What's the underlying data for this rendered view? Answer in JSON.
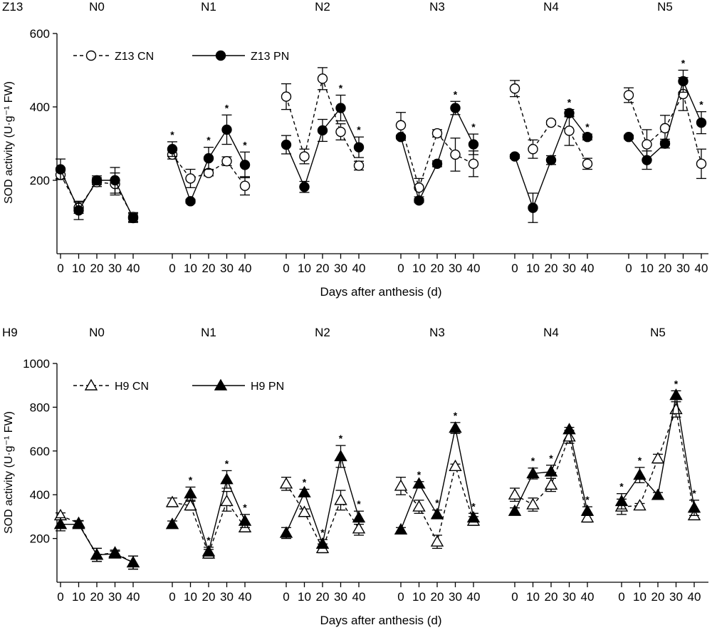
{
  "chart_data": [
    {
      "type": "line",
      "panel_label": "Z13",
      "ylabel": "SOD activity (U·g⁻¹ FW)",
      "xlabel": "Days after anthesis (d)",
      "ylim": [
        0,
        600
      ],
      "yticks": [
        200,
        400,
        600
      ],
      "groups": [
        "N0",
        "N1",
        "N2",
        "N3",
        "N4",
        "N5"
      ],
      "x": [
        0,
        10,
        20,
        30,
        40
      ],
      "marker": "circle",
      "series": [
        {
          "name": "Z13 CN",
          "style": "dashed-open",
          "values": [
            [
              215,
              125,
              195,
              190,
              100
            ],
            [
              270,
              205,
              220,
              252,
              185
            ],
            [
              428,
              265,
              477,
              332,
              240
            ],
            [
              350,
              180,
              328,
              270,
              245
            ],
            [
              450,
              285,
              357,
              335,
              245
            ],
            [
              432,
              298,
              342,
              435,
              245
            ]
          ],
          "errors": [
            [
              10,
              15,
              12,
              30,
              12
            ],
            [
              12,
              25,
              8,
              12,
              25
            ],
            [
              35,
              20,
              30,
              22,
              12
            ],
            [
              35,
              25,
              10,
              45,
              35
            ],
            [
              22,
              25,
              5,
              40,
              15
            ],
            [
              20,
              40,
              35,
              45,
              40
            ]
          ]
        },
        {
          "name": "Z13 PN",
          "style": "solid-filled",
          "values": [
            [
              230,
              118,
              200,
              200,
              97
            ],
            [
              285,
              143,
              260,
              338,
              242
            ],
            [
              297,
              182,
              336,
              397,
              290
            ],
            [
              318,
              145,
              245,
              397,
              298
            ],
            [
              265,
              125,
              255,
              383,
              318
            ],
            [
              318,
              255,
              300,
              470,
              357
            ]
          ],
          "errors": [
            [
              28,
              25,
              12,
              35,
              12
            ],
            [
              20,
              5,
              30,
              40,
              35
            ],
            [
              25,
              15,
              30,
              35,
              28
            ],
            [
              5,
              5,
              8,
              18,
              28
            ],
            [
              5,
              40,
              12,
              10,
              8
            ],
            [
              5,
              25,
              12,
              30,
              30
            ]
          ]
        }
      ],
      "significance": [
        [
          0,
          0,
          0,
          0,
          0
        ],
        [
          1,
          0,
          1,
          1,
          1
        ],
        [
          0,
          0,
          0,
          1,
          1
        ],
        [
          0,
          0,
          0,
          1,
          1
        ],
        [
          0,
          0,
          0,
          1,
          1
        ],
        [
          0,
          0,
          0,
          1,
          1
        ]
      ],
      "significance_mark": "*"
    },
    {
      "type": "line",
      "panel_label": "H9",
      "ylabel": "SOD activity (U·g⁻¹ FW)",
      "xlabel": "Days after anthesis (d)",
      "ylim": [
        0,
        1000
      ],
      "yticks": [
        200,
        400,
        600,
        800,
        1000
      ],
      "groups": [
        "N0",
        "N1",
        "N2",
        "N3",
        "N4",
        "N5"
      ],
      "x": [
        0,
        10,
        20,
        30,
        40
      ],
      "marker": "triangle",
      "series": [
        {
          "name": "H9 CN",
          "style": "dashed-open",
          "values": [
            [
              305,
              270,
              125,
              135,
              90
            ],
            [
              365,
              350,
              130,
              370,
              250
            ],
            [
              450,
              320,
              155,
              375,
              245
            ],
            [
              440,
              345,
              185,
              530,
              280
            ],
            [
              400,
              355,
              445,
              665,
              295
            ],
            [
              345,
              350,
              565,
              790,
              305
            ]
          ],
          "errors": [
            [
              12,
              12,
              30,
              12,
              30
            ],
            [
              20,
              20,
              20,
              45,
              20
            ],
            [
              30,
              15,
              20,
              45,
              30
            ],
            [
              40,
              30,
              30,
              10,
              20
            ],
            [
              30,
              30,
              30,
              30,
              20
            ],
            [
              35,
              10,
              20,
              35,
              15
            ]
          ]
        },
        {
          "name": "H9 PN",
          "style": "solid-filled",
          "values": [
            [
              265,
              265,
              125,
              130,
              90
            ],
            [
              265,
              405,
              140,
              470,
              280
            ],
            [
              225,
              410,
              175,
              575,
              295
            ],
            [
              240,
              450,
              310,
              705,
              295
            ],
            [
              325,
              497,
              505,
              698,
              325
            ],
            [
              370,
              490,
              398,
              855,
              340
            ]
          ],
          "errors": [
            [
              30,
              15,
              30,
              12,
              30
            ],
            [
              15,
              30,
              20,
              40,
              30
            ],
            [
              25,
              15,
              20,
              50,
              30
            ],
            [
              10,
              10,
              20,
              25,
              20
            ],
            [
              15,
              25,
              30,
              10,
              20
            ],
            [
              35,
              35,
              12,
              20,
              35
            ]
          ]
        }
      ],
      "significance": [
        [
          0,
          0,
          0,
          0,
          0
        ],
        [
          0,
          1,
          1,
          1,
          1
        ],
        [
          0,
          1,
          1,
          1,
          1
        ],
        [
          0,
          1,
          1,
          1,
          1
        ],
        [
          0,
          1,
          1,
          0,
          1
        ],
        [
          1,
          1,
          0,
          1,
          1
        ]
      ],
      "significance_mark": "*"
    }
  ]
}
